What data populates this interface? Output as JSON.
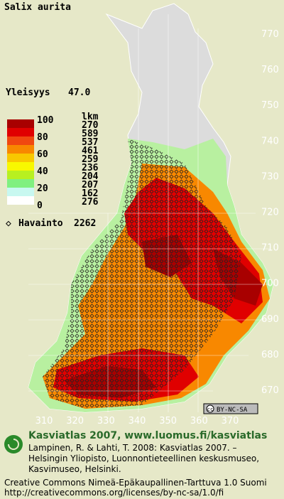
{
  "title": "Salix aurita",
  "frequency": {
    "label": "Yleisyys",
    "value": "47.0"
  },
  "legend": {
    "count_header": "lkm",
    "scale_labels": [
      100,
      80,
      60,
      40,
      20,
      0
    ],
    "classes": [
      {
        "count": 270,
        "color": "#a80000"
      },
      {
        "count": 589,
        "color": "#e00000"
      },
      {
        "count": 537,
        "color": "#f04810"
      },
      {
        "count": 461,
        "color": "#f88800"
      },
      {
        "count": 259,
        "color": "#f8c800"
      },
      {
        "count": 236,
        "color": "#f8f800"
      },
      {
        "count": 204,
        "color": "#b8f020"
      },
      {
        "count": 207,
        "color": "#80f080"
      },
      {
        "count": 162,
        "color": "#c8f8f0"
      },
      {
        "count": 276,
        "color": "#ffffff"
      }
    ],
    "observation": {
      "label": "Havainto",
      "value": 2262
    }
  },
  "grid": {
    "y_labels": [
      770,
      760,
      750,
      740,
      730,
      720,
      710,
      700,
      690,
      680,
      670
    ],
    "x_labels": [
      310,
      320,
      330,
      340,
      350,
      360,
      370
    ]
  },
  "license_badge": "BY-NC-SA",
  "footer": {
    "heading": "Kasviatlas 2007, www.luomus.fi/kasviatlas",
    "citation": [
      "Lampinen, R. & Lahti, T. 2008: Kasviatlas 2007. –",
      "Helsingin Yliopisto, Luonnontieteellinen keskusmuseo,",
      "Kasvimuseo, Helsinki."
    ],
    "license": "Creative Commons Nimeä-Epäkaupallinen-Tarttuva 1.0 Suomi",
    "url": "http://creativecommons.org/licenses/by-nc-sa/1.0/fi"
  }
}
